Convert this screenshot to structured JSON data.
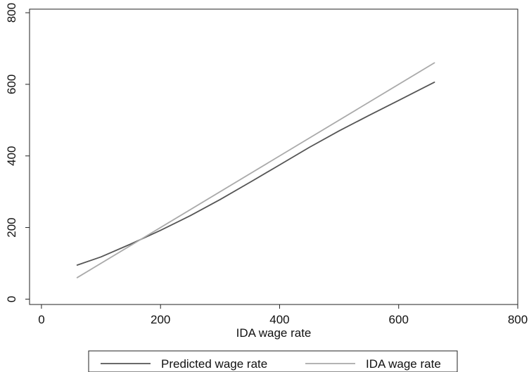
{
  "chart_data": {
    "type": "line",
    "title": "",
    "xlabel": "IDA wage rate",
    "ylabel": "",
    "xlim": [
      -20,
      800
    ],
    "ylim": [
      -15,
      810
    ],
    "xticks": [
      0,
      200,
      400,
      600,
      800
    ],
    "yticks": [
      0,
      200,
      400,
      600,
      800
    ],
    "grid": false,
    "legend_position": "bottom",
    "series": [
      {
        "name": "Predicted wage rate",
        "color": "#555555",
        "x": [
          60,
          100,
          150,
          200,
          250,
          300,
          350,
          400,
          450,
          500,
          550,
          600,
          660
        ],
        "y": [
          95,
          118,
          154,
          192,
          233,
          278,
          326,
          375,
          424,
          470,
          513,
          555,
          606
        ]
      },
      {
        "name": "IDA wage rate",
        "color": "#aaaaaa",
        "x": [
          60,
          660
        ],
        "y": [
          60,
          660
        ]
      }
    ]
  }
}
